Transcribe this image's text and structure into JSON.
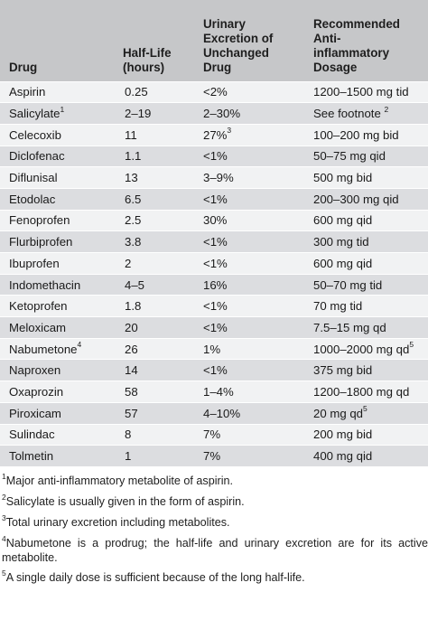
{
  "table": {
    "headers": {
      "drug": "Drug",
      "half_life": "Half-Life\n(hours)",
      "urinary": "Urinary\nExcretion of\nUnchanged\nDrug",
      "dosage": "Recommended\nAnti-\ninflammatory\nDosage"
    },
    "rows": [
      {
        "drug": "Aspirin",
        "drug_sup": "",
        "half_life": "0.25",
        "urinary": "<2%",
        "urinary_sup": "",
        "dosage": "1200–1500 mg tid",
        "dosage_sup": ""
      },
      {
        "drug": "Salicylate",
        "drug_sup": "1",
        "half_life": "2–19",
        "urinary": "2–30%",
        "urinary_sup": "",
        "dosage": "See footnote ",
        "dosage_sup": "2"
      },
      {
        "drug": "Celecoxib",
        "drug_sup": "",
        "half_life": "11",
        "urinary": "27%",
        "urinary_sup": "3",
        "dosage": "100–200 mg bid",
        "dosage_sup": ""
      },
      {
        "drug": "Diclofenac",
        "drug_sup": "",
        "half_life": "1.1",
        "urinary": "<1%",
        "urinary_sup": "",
        "dosage": "50–75 mg qid",
        "dosage_sup": ""
      },
      {
        "drug": "Diflunisal",
        "drug_sup": "",
        "half_life": "13",
        "urinary": "3–9%",
        "urinary_sup": "",
        "dosage": "500 mg bid",
        "dosage_sup": ""
      },
      {
        "drug": "Etodolac",
        "drug_sup": "",
        "half_life": "6.5",
        "urinary": "<1%",
        "urinary_sup": "",
        "dosage": "200–300 mg qid",
        "dosage_sup": ""
      },
      {
        "drug": "Fenoprofen",
        "drug_sup": "",
        "half_life": "2.5",
        "urinary": "30%",
        "urinary_sup": "",
        "dosage": "600 mg qid",
        "dosage_sup": ""
      },
      {
        "drug": "Flurbiprofen",
        "drug_sup": "",
        "half_life": "3.8",
        "urinary": "<1%",
        "urinary_sup": "",
        "dosage": "300 mg tid",
        "dosage_sup": ""
      },
      {
        "drug": "Ibuprofen",
        "drug_sup": "",
        "half_life": "2",
        "urinary": "<1%",
        "urinary_sup": "",
        "dosage": "600 mg qid",
        "dosage_sup": ""
      },
      {
        "drug": "Indomethacin",
        "drug_sup": "",
        "half_life": "4–5",
        "urinary": "16%",
        "urinary_sup": "",
        "dosage": "50–70 mg tid",
        "dosage_sup": ""
      },
      {
        "drug": "Ketoprofen",
        "drug_sup": "",
        "half_life": "1.8",
        "urinary": "<1%",
        "urinary_sup": "",
        "dosage": "70 mg tid",
        "dosage_sup": ""
      },
      {
        "drug": "Meloxicam",
        "drug_sup": "",
        "half_life": "20",
        "urinary": "<1%",
        "urinary_sup": "",
        "dosage": "7.5–15 mg qd",
        "dosage_sup": ""
      },
      {
        "drug": "Nabumetone",
        "drug_sup": "4",
        "half_life": "26",
        "urinary": "1%",
        "urinary_sup": "",
        "dosage": "1000–2000 mg qd",
        "dosage_sup": "5"
      },
      {
        "drug": "Naproxen",
        "drug_sup": "",
        "half_life": "14",
        "urinary": "<1%",
        "urinary_sup": "",
        "dosage": "375 mg bid",
        "dosage_sup": ""
      },
      {
        "drug": "Oxaprozin",
        "drug_sup": "",
        "half_life": "58",
        "urinary": "1–4%",
        "urinary_sup": "",
        "dosage": "1200–1800 mg qd",
        "dosage_sup": ""
      },
      {
        "drug": "Piroxicam",
        "drug_sup": "",
        "half_life": "57",
        "urinary": "4–10%",
        "urinary_sup": "",
        "dosage": "20 mg qd",
        "dosage_sup": "5"
      },
      {
        "drug": "Sulindac",
        "drug_sup": "",
        "half_life": "8",
        "urinary": "7%",
        "urinary_sup": "",
        "dosage": "200 mg bid",
        "dosage_sup": ""
      },
      {
        "drug": "Tolmetin",
        "drug_sup": "",
        "half_life": "1",
        "urinary": "7%",
        "urinary_sup": "",
        "dosage": "400 mg qid",
        "dosage_sup": ""
      }
    ]
  },
  "footnotes": [
    {
      "marker": "1",
      "text": "Major anti-inflammatory metabolite of aspirin."
    },
    {
      "marker": "2",
      "text": "Salicylate is usually given in the form of aspirin."
    },
    {
      "marker": "3",
      "text": "Total urinary excretion including metabolites."
    },
    {
      "marker": "4",
      "text": "Nabumetone is a prodrug; the half-life and urinary excretion are for its active metabolite."
    },
    {
      "marker": "5",
      "text": "A single daily dose is sufficient because of the long half-life."
    }
  ],
  "colors": {
    "header_bg": "#c6c7c9",
    "row_light": "#f1f2f3",
    "row_dark": "#dcdde0",
    "text": "#1e1e1e"
  }
}
